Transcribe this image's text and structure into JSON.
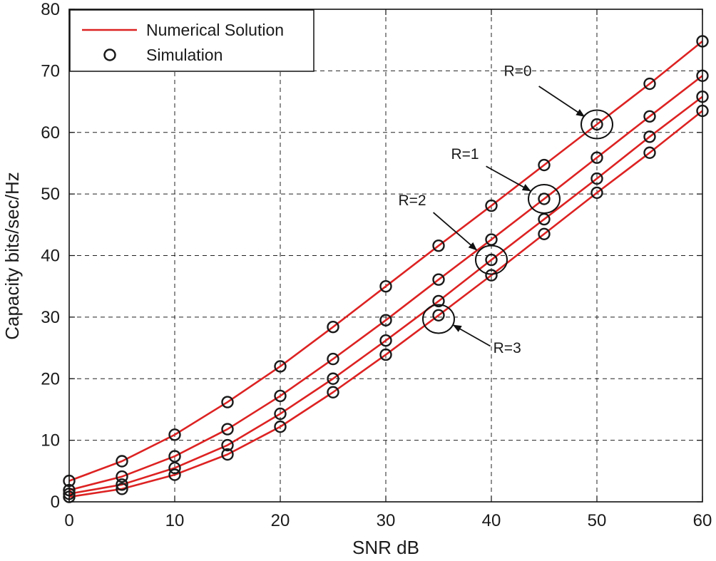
{
  "chart_data": {
    "type": "line",
    "xlabel": "SNR dB",
    "ylabel": "Capacity bits/sec/Hz",
    "xlim": [
      0,
      60
    ],
    "ylim": [
      0,
      80
    ],
    "xticks": [
      "0",
      "10",
      "20",
      "30",
      "40",
      "50",
      "60"
    ],
    "yticks": [
      "0",
      "10",
      "20",
      "30",
      "40",
      "50",
      "60",
      "70",
      "80"
    ],
    "grid": true,
    "legend": {
      "position": "top-left",
      "entries": [
        "Numerical Solution",
        "Simulation"
      ]
    },
    "x": [
      0,
      5,
      10,
      15,
      20,
      25,
      30,
      35,
      40,
      45,
      50,
      55,
      60
    ],
    "series": [
      {
        "name": "R=0",
        "values": [
          3.4,
          6.6,
          10.9,
          16.2,
          22.0,
          28.4,
          35.0,
          41.6,
          48.1,
          54.7,
          61.3,
          67.9,
          74.8
        ]
      },
      {
        "name": "R=1",
        "values": [
          1.9,
          4.1,
          7.4,
          11.8,
          17.2,
          23.2,
          29.5,
          36.1,
          42.6,
          49.2,
          55.9,
          62.6,
          69.2
        ]
      },
      {
        "name": "R=2",
        "values": [
          1.3,
          2.8,
          5.5,
          9.2,
          14.3,
          20.0,
          26.2,
          32.6,
          39.3,
          45.9,
          52.5,
          59.3,
          65.8
        ]
      },
      {
        "name": "R=3",
        "values": [
          0.8,
          2.1,
          4.4,
          7.7,
          12.2,
          17.8,
          23.9,
          30.3,
          36.8,
          43.5,
          50.2,
          56.7,
          63.5
        ]
      }
    ],
    "annotations": [
      {
        "text": "R=0",
        "text_at": [
          42.5,
          70
        ],
        "arrow_from": [
          44.5,
          67.5
        ],
        "arrow_to": [
          48.8,
          62.6
        ],
        "circle_at": [
          50,
          61.3
        ]
      },
      {
        "text": "R=1",
        "text_at": [
          37.5,
          56.5
        ],
        "arrow_from": [
          39.5,
          54.5
        ],
        "arrow_to": [
          43.7,
          50.5
        ],
        "circle_at": [
          45,
          49.2
        ]
      },
      {
        "text": "R=2",
        "text_at": [
          32.5,
          49
        ],
        "arrow_from": [
          34.5,
          47
        ],
        "arrow_to": [
          38.6,
          40.9
        ],
        "circle_at": [
          40,
          39.3
        ]
      },
      {
        "text": "R=3",
        "text_at": [
          41.5,
          25
        ],
        "arrow_from": [
          39.9,
          25.3
        ],
        "arrow_to": [
          36.4,
          28.7
        ],
        "circle_at": [
          35,
          29.7
        ]
      }
    ],
    "colors": {
      "line": "#dd2222",
      "marker": "#1a1a1a",
      "grid": "#222222"
    }
  }
}
